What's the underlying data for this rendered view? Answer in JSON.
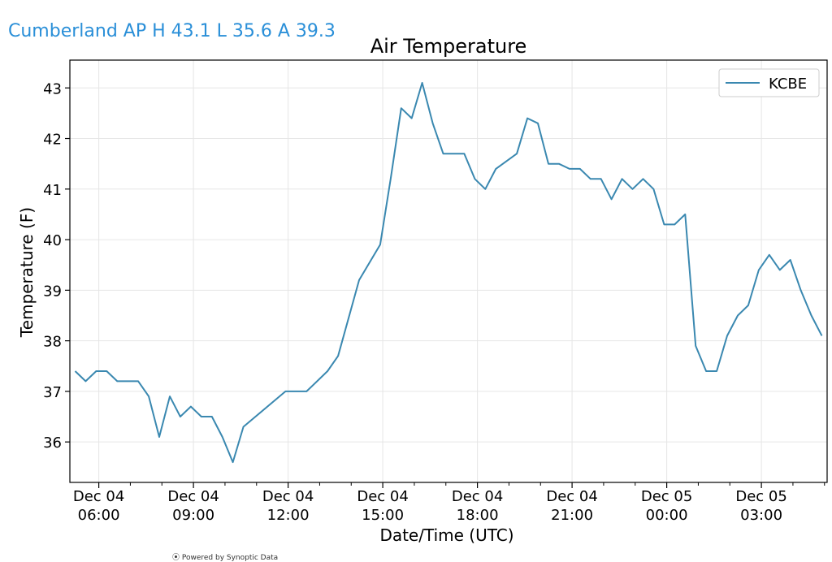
{
  "header": {
    "text": "Cumberland AP H 43.1 L 35.6 A 39.3"
  },
  "footer": {
    "text": "⦿ Powered by Synoptic Data"
  },
  "colors": {
    "line": "#3a88b0",
    "header": "#2a8fd8",
    "grid": "#e6e6e6"
  },
  "chart_data": {
    "type": "line",
    "title": "Air Temperature",
    "xlabel": "Date/Time (UTC)",
    "ylabel": "Temperature (F)",
    "ylim": [
      35.2,
      43.55
    ],
    "xlim": [
      "2024-12-04T05:05:00Z",
      "2024-12-05T05:05:00Z"
    ],
    "grid": true,
    "legend": {
      "position": "top-right",
      "entries": [
        "KCBE"
      ]
    },
    "y_ticks": [
      36,
      37,
      38,
      39,
      40,
      41,
      42,
      43
    ],
    "x_ticks": [
      {
        "t": "2024-12-04T06:00:00Z",
        "line1": "Dec 04",
        "line2": "06:00"
      },
      {
        "t": "2024-12-04T09:00:00Z",
        "line1": "Dec 04",
        "line2": "09:00"
      },
      {
        "t": "2024-12-04T12:00:00Z",
        "line1": "Dec 04",
        "line2": "12:00"
      },
      {
        "t": "2024-12-04T15:00:00Z",
        "line1": "Dec 04",
        "line2": "15:00"
      },
      {
        "t": "2024-12-04T18:00:00Z",
        "line1": "Dec 04",
        "line2": "18:00"
      },
      {
        "t": "2024-12-04T21:00:00Z",
        "line1": "Dec 04",
        "line2": "21:00"
      },
      {
        "t": "2024-12-05T00:00:00Z",
        "line1": "Dec 05",
        "line2": "00:00"
      },
      {
        "t": "2024-12-05T03:00:00Z",
        "line1": "Dec 05",
        "line2": "03:00"
      }
    ],
    "series": [
      {
        "name": "KCBE",
        "points": [
          [
            "2024-12-04T05:15:00Z",
            37.4
          ],
          [
            "2024-12-04T05:35:00Z",
            37.2
          ],
          [
            "2024-12-04T05:55:00Z",
            37.4
          ],
          [
            "2024-12-04T06:15:00Z",
            37.4
          ],
          [
            "2024-12-04T06:35:00Z",
            37.2
          ],
          [
            "2024-12-04T06:55:00Z",
            37.2
          ],
          [
            "2024-12-04T07:15:00Z",
            37.2
          ],
          [
            "2024-12-04T07:35:00Z",
            36.9
          ],
          [
            "2024-12-04T07:55:00Z",
            36.1
          ],
          [
            "2024-12-04T08:15:00Z",
            36.9
          ],
          [
            "2024-12-04T08:35:00Z",
            36.5
          ],
          [
            "2024-12-04T08:55:00Z",
            36.7
          ],
          [
            "2024-12-04T09:15:00Z",
            36.5
          ],
          [
            "2024-12-04T09:35:00Z",
            36.5
          ],
          [
            "2024-12-04T09:55:00Z",
            36.1
          ],
          [
            "2024-12-04T10:15:00Z",
            35.6
          ],
          [
            "2024-12-04T10:35:00Z",
            36.3
          ],
          [
            "2024-12-04T11:55:00Z",
            37.0
          ],
          [
            "2024-12-04T12:35:00Z",
            37.0
          ],
          [
            "2024-12-04T13:15:00Z",
            37.4
          ],
          [
            "2024-12-04T13:35:00Z",
            37.7
          ],
          [
            "2024-12-04T14:15:00Z",
            39.2
          ],
          [
            "2024-12-04T14:55:00Z",
            39.9
          ],
          [
            "2024-12-04T15:15:00Z",
            41.2
          ],
          [
            "2024-12-04T15:35:00Z",
            42.6
          ],
          [
            "2024-12-04T15:55:00Z",
            42.4
          ],
          [
            "2024-12-04T16:15:00Z",
            43.1
          ],
          [
            "2024-12-04T16:35:00Z",
            42.3
          ],
          [
            "2024-12-04T16:55:00Z",
            41.7
          ],
          [
            "2024-12-04T17:35:00Z",
            41.7
          ],
          [
            "2024-12-04T17:55:00Z",
            41.2
          ],
          [
            "2024-12-04T18:15:00Z",
            41.0
          ],
          [
            "2024-12-04T18:35:00Z",
            41.4
          ],
          [
            "2024-12-04T19:15:00Z",
            41.7
          ],
          [
            "2024-12-04T19:35:00Z",
            42.4
          ],
          [
            "2024-12-04T19:55:00Z",
            42.3
          ],
          [
            "2024-12-04T20:15:00Z",
            41.5
          ],
          [
            "2024-12-04T20:35:00Z",
            41.5
          ],
          [
            "2024-12-04T20:55:00Z",
            41.4
          ],
          [
            "2024-12-04T21:15:00Z",
            41.4
          ],
          [
            "2024-12-04T21:35:00Z",
            41.2
          ],
          [
            "2024-12-04T21:55:00Z",
            41.2
          ],
          [
            "2024-12-04T22:15:00Z",
            40.8
          ],
          [
            "2024-12-04T22:35:00Z",
            41.2
          ],
          [
            "2024-12-04T22:55:00Z",
            41.0
          ],
          [
            "2024-12-04T23:15:00Z",
            41.2
          ],
          [
            "2024-12-04T23:35:00Z",
            41.0
          ],
          [
            "2024-12-04T23:55:00Z",
            40.3
          ],
          [
            "2024-12-05T00:15:00Z",
            40.3
          ],
          [
            "2024-12-05T00:35:00Z",
            40.5
          ],
          [
            "2024-12-05T00:55:00Z",
            37.9
          ],
          [
            "2024-12-05T01:15:00Z",
            37.4
          ],
          [
            "2024-12-05T01:35:00Z",
            37.4
          ],
          [
            "2024-12-05T01:55:00Z",
            38.1
          ],
          [
            "2024-12-05T02:15:00Z",
            38.5
          ],
          [
            "2024-12-05T02:35:00Z",
            38.7
          ],
          [
            "2024-12-05T02:55:00Z",
            39.4
          ],
          [
            "2024-12-05T03:15:00Z",
            39.7
          ],
          [
            "2024-12-05T03:35:00Z",
            39.4
          ],
          [
            "2024-12-05T03:55:00Z",
            39.6
          ],
          [
            "2024-12-05T04:15:00Z",
            39.0
          ],
          [
            "2024-12-05T04:35:00Z",
            38.5
          ],
          [
            "2024-12-05T04:55:00Z",
            38.1
          ]
        ]
      }
    ]
  }
}
